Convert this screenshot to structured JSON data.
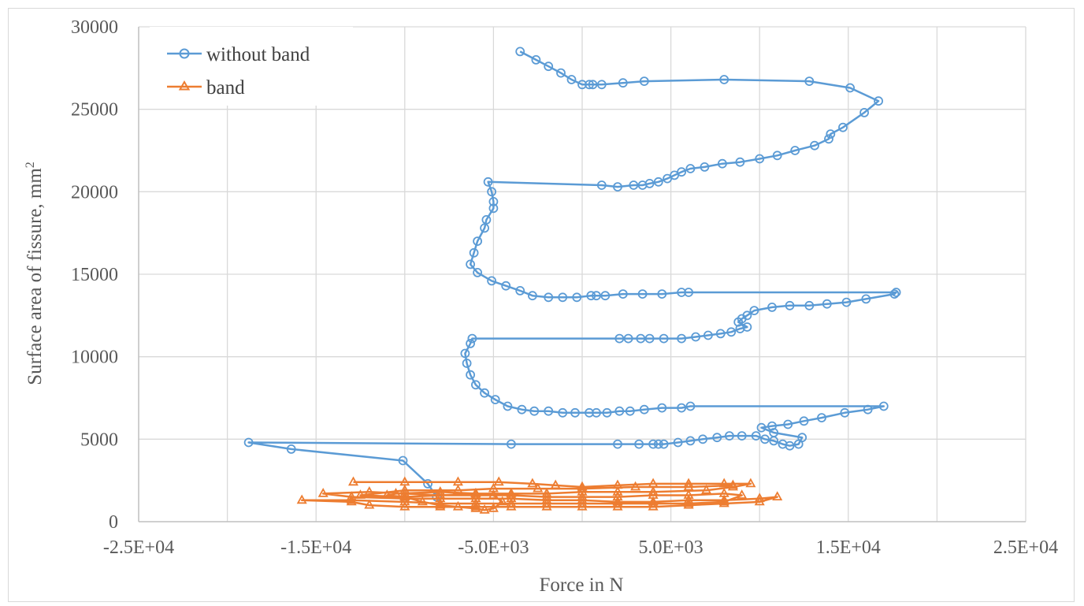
{
  "chart_data": {
    "type": "scatter",
    "xlabel": "Force in N",
    "ylabel": "Surface area of fissure, mm",
    "ylabel_superscript": "2",
    "xlim": [
      -25000,
      25000
    ],
    "ylim": [
      0,
      30000
    ],
    "x_ticks": [
      -25000,
      -15000,
      -5000,
      5000,
      15000,
      25000
    ],
    "x_tick_labels": [
      "-2.5E+04",
      "-1.5E+04",
      "-5.0E+03",
      "5.0E+03",
      "1.5E+04",
      "2.5E+04"
    ],
    "x_gridlines": [
      -25000,
      -20000,
      -15000,
      -10000,
      -5000,
      0,
      5000,
      10000,
      15000,
      20000,
      25000
    ],
    "y_ticks": [
      0,
      5000,
      10000,
      15000,
      20000,
      25000,
      30000
    ],
    "y_tick_labels": [
      "0",
      "5000",
      "10000",
      "15000",
      "20000",
      "25000",
      "30000"
    ],
    "grid": true,
    "legend_position": "top-left",
    "series": [
      {
        "name": "without band",
        "color": "#5b9bd5",
        "marker": "circle",
        "points": [
          [
            -3500,
            28500
          ],
          [
            -2600,
            28000
          ],
          [
            -1900,
            27600
          ],
          [
            -1200,
            27200
          ],
          [
            -600,
            26800
          ],
          [
            0,
            26500
          ],
          [
            400,
            26500
          ],
          [
            600,
            26500
          ],
          [
            1100,
            26500
          ],
          [
            2300,
            26600
          ],
          [
            3500,
            26700
          ],
          [
            8000,
            26800
          ],
          [
            12800,
            26700
          ],
          [
            15100,
            26300
          ],
          [
            16700,
            25500
          ],
          [
            15900,
            24800
          ],
          [
            14700,
            23900
          ],
          [
            14000,
            23500
          ],
          [
            13900,
            23200
          ],
          [
            13100,
            22800
          ],
          [
            12000,
            22500
          ],
          [
            11000,
            22200
          ],
          [
            10000,
            22000
          ],
          [
            8900,
            21800
          ],
          [
            7900,
            21700
          ],
          [
            6900,
            21500
          ],
          [
            6100,
            21400
          ],
          [
            5600,
            21200
          ],
          [
            5200,
            21000
          ],
          [
            4800,
            20800
          ],
          [
            4300,
            20600
          ],
          [
            3800,
            20500
          ],
          [
            3400,
            20400
          ],
          [
            2900,
            20400
          ],
          [
            2000,
            20300
          ],
          [
            1100,
            20400
          ],
          [
            -5300,
            20600
          ],
          [
            -5100,
            20000
          ],
          [
            -5000,
            19400
          ],
          [
            -5000,
            19000
          ],
          [
            -5400,
            18300
          ],
          [
            -5500,
            17800
          ],
          [
            -5900,
            17000
          ],
          [
            -6100,
            16300
          ],
          [
            -6300,
            15600
          ],
          [
            -5900,
            15100
          ],
          [
            -5100,
            14600
          ],
          [
            -4300,
            14300
          ],
          [
            -3500,
            14000
          ],
          [
            -2800,
            13700
          ],
          [
            -1900,
            13600
          ],
          [
            -1100,
            13600
          ],
          [
            -300,
            13600
          ],
          [
            500,
            13700
          ],
          [
            800,
            13700
          ],
          [
            1300,
            13700
          ],
          [
            2300,
            13800
          ],
          [
            3400,
            13800
          ],
          [
            4500,
            13800
          ],
          [
            5600,
            13900
          ],
          [
            6000,
            13900
          ],
          [
            17700,
            13900
          ],
          [
            17600,
            13800
          ],
          [
            16000,
            13500
          ],
          [
            14900,
            13300
          ],
          [
            13800,
            13200
          ],
          [
            12800,
            13100
          ],
          [
            11700,
            13100
          ],
          [
            10700,
            13000
          ],
          [
            9700,
            12800
          ],
          [
            9300,
            12500
          ],
          [
            9000,
            12300
          ],
          [
            8800,
            12100
          ],
          [
            9300,
            11800
          ],
          [
            8900,
            11700
          ],
          [
            8400,
            11500
          ],
          [
            7800,
            11400
          ],
          [
            7100,
            11300
          ],
          [
            6400,
            11200
          ],
          [
            5600,
            11100
          ],
          [
            4600,
            11100
          ],
          [
            3800,
            11100
          ],
          [
            3300,
            11100
          ],
          [
            2600,
            11100
          ],
          [
            2100,
            11100
          ],
          [
            -6200,
            11100
          ],
          [
            -6300,
            10800
          ],
          [
            -6600,
            10200
          ],
          [
            -6500,
            9600
          ],
          [
            -6300,
            8900
          ],
          [
            -6000,
            8300
          ],
          [
            -5500,
            7800
          ],
          [
            -4900,
            7400
          ],
          [
            -4200,
            7000
          ],
          [
            -3400,
            6800
          ],
          [
            -2700,
            6700
          ],
          [
            -1900,
            6700
          ],
          [
            -1100,
            6600
          ],
          [
            -400,
            6600
          ],
          [
            400,
            6600
          ],
          [
            800,
            6600
          ],
          [
            1400,
            6600
          ],
          [
            2100,
            6700
          ],
          [
            2700,
            6700
          ],
          [
            3500,
            6800
          ],
          [
            4500,
            6900
          ],
          [
            5600,
            6900
          ],
          [
            6100,
            7000
          ],
          [
            17000,
            7000
          ],
          [
            16100,
            6800
          ],
          [
            14800,
            6600
          ],
          [
            13500,
            6300
          ],
          [
            12500,
            6100
          ],
          [
            11600,
            5900
          ],
          [
            10700,
            5800
          ],
          [
            10100,
            5700
          ],
          [
            10800,
            5400
          ],
          [
            12400,
            5100
          ],
          [
            12200,
            4700
          ],
          [
            11700,
            4600
          ],
          [
            11300,
            4700
          ],
          [
            10800,
            4900
          ],
          [
            10300,
            5000
          ],
          [
            9800,
            5200
          ],
          [
            9000,
            5200
          ],
          [
            8300,
            5200
          ],
          [
            7600,
            5100
          ],
          [
            6800,
            5000
          ],
          [
            6100,
            4900
          ],
          [
            5400,
            4800
          ],
          [
            4600,
            4700
          ],
          [
            4300,
            4700
          ],
          [
            4000,
            4700
          ],
          [
            3200,
            4700
          ],
          [
            2000,
            4700
          ],
          [
            -4000,
            4700
          ],
          [
            -18800,
            4800
          ],
          [
            -16400,
            4400
          ],
          [
            -10100,
            3700
          ],
          [
            -8700,
            2300
          ],
          [
            -8200,
            1500
          ]
        ]
      },
      {
        "name": "band",
        "color": "#ed7d31",
        "marker": "triangle",
        "points": [
          [
            -12900,
            2400
          ],
          [
            -10000,
            2400
          ],
          [
            -7000,
            2400
          ],
          [
            -4700,
            2400
          ],
          [
            -2800,
            2300
          ],
          [
            -1500,
            2200
          ],
          [
            0,
            2100
          ],
          [
            2000,
            2200
          ],
          [
            4000,
            2300
          ],
          [
            6000,
            2300
          ],
          [
            8000,
            2300
          ],
          [
            9500,
            2300
          ],
          [
            8500,
            2100
          ],
          [
            7000,
            1900
          ],
          [
            4000,
            1800
          ],
          [
            2000,
            1800
          ],
          [
            0,
            1800
          ],
          [
            -2000,
            1700
          ],
          [
            -4000,
            1700
          ],
          [
            -6000,
            1700
          ],
          [
            -8000,
            1600
          ],
          [
            -10000,
            1700
          ],
          [
            -12000,
            1800
          ],
          [
            -14600,
            1700
          ],
          [
            -13000,
            1500
          ],
          [
            -10000,
            1400
          ],
          [
            -8000,
            1400
          ],
          [
            -6000,
            1400
          ],
          [
            -4000,
            1400
          ],
          [
            -2000,
            1300
          ],
          [
            0,
            1300
          ],
          [
            2000,
            1200
          ],
          [
            4000,
            1200
          ],
          [
            6000,
            1300
          ],
          [
            8000,
            1300
          ],
          [
            10000,
            1400
          ],
          [
            11000,
            1500
          ],
          [
            10000,
            1200
          ],
          [
            8000,
            1100
          ],
          [
            6000,
            1000
          ],
          [
            4000,
            900
          ],
          [
            2000,
            900
          ],
          [
            0,
            900
          ],
          [
            -2000,
            900
          ],
          [
            -4000,
            900
          ],
          [
            -6000,
            900
          ],
          [
            -8000,
            900
          ],
          [
            -10000,
            900
          ],
          [
            -12000,
            1000
          ],
          [
            -13000,
            1200
          ],
          [
            -15800,
            1300
          ],
          [
            -13000,
            1300
          ],
          [
            -10000,
            1200
          ],
          [
            -8000,
            1100
          ],
          [
            -6000,
            1100
          ],
          [
            -4000,
            1100
          ],
          [
            -2000,
            1100
          ],
          [
            0,
            1100
          ],
          [
            2000,
            1100
          ],
          [
            4000,
            1100
          ],
          [
            6000,
            1100
          ],
          [
            8000,
            1200
          ],
          [
            9000,
            1600
          ],
          [
            8000,
            1700
          ],
          [
            6000,
            1600
          ],
          [
            4000,
            1600
          ],
          [
            2000,
            1500
          ],
          [
            0,
            1500
          ],
          [
            -2000,
            1500
          ],
          [
            -4000,
            1600
          ],
          [
            -6000,
            1600
          ],
          [
            -8000,
            1600
          ],
          [
            -10000,
            1500
          ],
          [
            -11000,
            1600
          ],
          [
            -10500,
            1700
          ],
          [
            -8000,
            1800
          ],
          [
            -6000,
            1700
          ],
          [
            -5000,
            1600
          ],
          [
            -4500,
            1200
          ],
          [
            -5000,
            800
          ],
          [
            -5500,
            700
          ],
          [
            -6000,
            800
          ],
          [
            -7000,
            900
          ],
          [
            -8000,
            1000
          ],
          [
            -9000,
            1200
          ],
          [
            -10000,
            1500
          ],
          [
            -12500,
            1600
          ],
          [
            -10000,
            1900
          ],
          [
            -7000,
            1900
          ],
          [
            -5000,
            2000
          ],
          [
            -2500,
            2000
          ],
          [
            0,
            2000
          ],
          [
            3000,
            2100
          ],
          [
            6000,
            2100
          ],
          [
            8500,
            2200
          ]
        ]
      }
    ]
  }
}
